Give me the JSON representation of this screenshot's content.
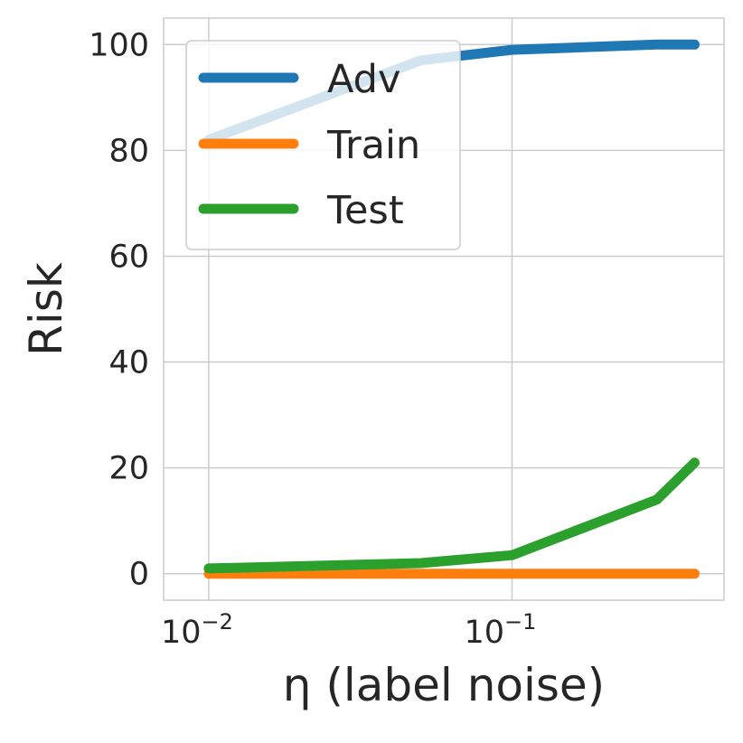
{
  "chart_data": {
    "type": "line",
    "xscale": "log",
    "xlim": [
      0.0071,
      0.5
    ],
    "ylim": [
      -5,
      105
    ],
    "xlabel": "η (label noise)",
    "ylabel": "Risk",
    "grid": true,
    "legend_position": "top-left",
    "yticks": [
      0,
      20,
      40,
      60,
      80,
      100
    ],
    "ytick_labels": [
      "0",
      "20",
      "40",
      "60",
      "80",
      100
    ],
    "xticks": [
      0.01,
      0.1
    ],
    "xtick_labels": [
      {
        "base": "10",
        "exp": "−2"
      },
      {
        "base": "10",
        "exp": "−1"
      }
    ],
    "series": [
      {
        "name": "Adv",
        "color": "#1f77b4",
        "x": [
          0.01,
          0.05,
          0.1,
          0.3,
          0.4
        ],
        "y": [
          82,
          97,
          99,
          100,
          100
        ]
      },
      {
        "name": "Train",
        "color": "#ff7f0e",
        "x": [
          0.01,
          0.05,
          0.1,
          0.3,
          0.4
        ],
        "y": [
          0,
          0,
          0,
          0,
          0
        ]
      },
      {
        "name": "Test",
        "color": "#2ca02c",
        "x": [
          0.01,
          0.05,
          0.1,
          0.3,
          0.4
        ],
        "y": [
          1,
          2,
          3.5,
          14,
          21
        ]
      }
    ]
  }
}
